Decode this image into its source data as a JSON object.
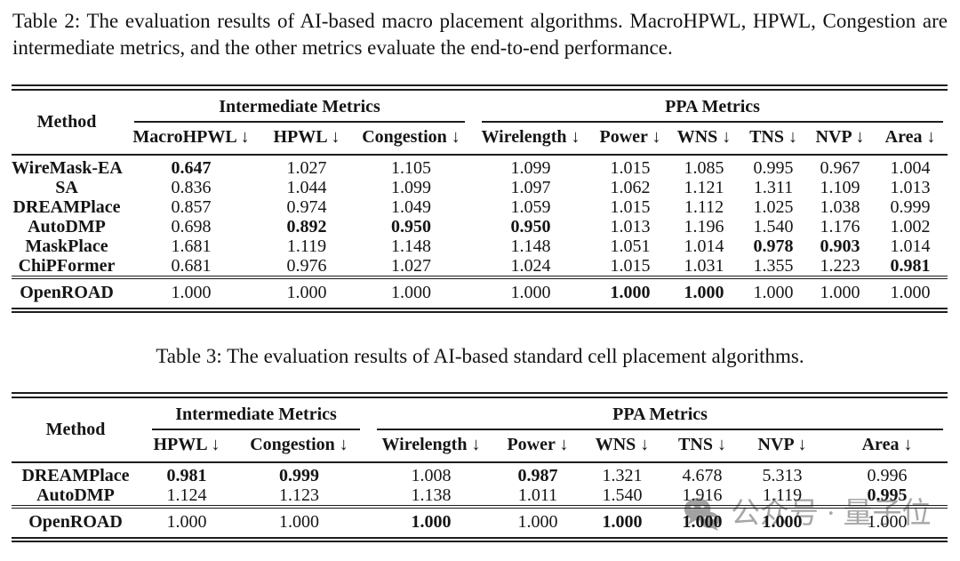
{
  "page": {
    "background": "#ffffff",
    "text_color": "#151515",
    "rule_color": "#1d1d1d",
    "watermark_color": "#a7a7a7"
  },
  "table2": {
    "caption": "Table 2: The evaluation results of AI-based macro placement algorithms. MacroHPWL, HPWL, Congestion are intermediate metrics, and the other metrics evaluate the end-to-end performance.",
    "method_header": "Method",
    "groups": [
      {
        "label": "Intermediate Metrics"
      },
      {
        "label": "PPA Metrics"
      }
    ],
    "columns": [
      "MacroHPWL ↓",
      "HPWL ↓",
      "Congestion ↓",
      "Wirelength ↓",
      "Power ↓",
      "WNS ↓",
      "TNS ↓",
      "NVP ↓",
      "Area ↓"
    ],
    "rows": [
      {
        "method": "WireMask-EA",
        "cells": [
          {
            "v": "0.647",
            "b": true
          },
          {
            "v": "1.027"
          },
          {
            "v": "1.105"
          },
          {
            "v": "1.099"
          },
          {
            "v": "1.015"
          },
          {
            "v": "1.085"
          },
          {
            "v": "0.995"
          },
          {
            "v": "0.967"
          },
          {
            "v": "1.004"
          }
        ]
      },
      {
        "method": "SA",
        "cells": [
          {
            "v": "0.836"
          },
          {
            "v": "1.044"
          },
          {
            "v": "1.099"
          },
          {
            "v": "1.097"
          },
          {
            "v": "1.062"
          },
          {
            "v": "1.121"
          },
          {
            "v": "1.311"
          },
          {
            "v": "1.109"
          },
          {
            "v": "1.013"
          }
        ]
      },
      {
        "method": "DREAMPlace",
        "cells": [
          {
            "v": "0.857"
          },
          {
            "v": "0.974"
          },
          {
            "v": "1.049"
          },
          {
            "v": "1.059"
          },
          {
            "v": "1.015"
          },
          {
            "v": "1.112"
          },
          {
            "v": "1.025"
          },
          {
            "v": "1.038"
          },
          {
            "v": "0.999"
          }
        ]
      },
      {
        "method": "AutoDMP",
        "cells": [
          {
            "v": "0.698"
          },
          {
            "v": "0.892",
            "b": true
          },
          {
            "v": "0.950",
            "b": true
          },
          {
            "v": "0.950",
            "b": true
          },
          {
            "v": "1.013"
          },
          {
            "v": "1.196"
          },
          {
            "v": "1.540"
          },
          {
            "v": "1.176"
          },
          {
            "v": "1.002"
          }
        ]
      },
      {
        "method": "MaskPlace",
        "cells": [
          {
            "v": "1.681"
          },
          {
            "v": "1.119"
          },
          {
            "v": "1.148"
          },
          {
            "v": "1.148"
          },
          {
            "v": "1.051"
          },
          {
            "v": "1.014"
          },
          {
            "v": "0.978",
            "b": true
          },
          {
            "v": "0.903",
            "b": true
          },
          {
            "v": "1.014"
          }
        ]
      },
      {
        "method": "ChiPFormer",
        "cells": [
          {
            "v": "0.681"
          },
          {
            "v": "0.976"
          },
          {
            "v": "1.027"
          },
          {
            "v": "1.024"
          },
          {
            "v": "1.015"
          },
          {
            "v": "1.031"
          },
          {
            "v": "1.355"
          },
          {
            "v": "1.223"
          },
          {
            "v": "0.981",
            "b": true
          }
        ]
      }
    ],
    "baseline": [
      {
        "method": "OpenROAD",
        "cells": [
          {
            "v": "1.000"
          },
          {
            "v": "1.000"
          },
          {
            "v": "1.000"
          },
          {
            "v": "1.000"
          },
          {
            "v": "1.000",
            "b": true
          },
          {
            "v": "1.000",
            "b": true
          },
          {
            "v": "1.000"
          },
          {
            "v": "1.000"
          },
          {
            "v": "1.000"
          }
        ]
      }
    ]
  },
  "table3": {
    "caption": "Table 3: The evaluation results of AI-based standard cell placement algorithms.",
    "method_header": "Method",
    "groups": [
      {
        "label": "Intermediate Metrics"
      },
      {
        "label": "PPA Metrics"
      }
    ],
    "columns": [
      "HPWL ↓",
      "Congestion ↓",
      "Wirelength ↓",
      "Power ↓",
      "WNS ↓",
      "TNS ↓",
      "NVP ↓",
      "Area ↓"
    ],
    "rows": [
      {
        "method": "DREAMPlace",
        "cells": [
          {
            "v": "0.981",
            "b": true
          },
          {
            "v": "0.999",
            "b": true
          },
          {
            "v": "1.008"
          },
          {
            "v": "0.987",
            "b": true
          },
          {
            "v": "1.321"
          },
          {
            "v": "4.678"
          },
          {
            "v": "5.313"
          },
          {
            "v": "0.996"
          }
        ]
      },
      {
        "method": "AutoDMP",
        "cells": [
          {
            "v": "1.124"
          },
          {
            "v": "1.123"
          },
          {
            "v": "1.138"
          },
          {
            "v": "1.011"
          },
          {
            "v": "1.540"
          },
          {
            "v": "1.916"
          },
          {
            "v": "1.119"
          },
          {
            "v": "0.995",
            "b": true
          }
        ]
      }
    ],
    "baseline": [
      {
        "method": "OpenROAD",
        "cells": [
          {
            "v": "1.000"
          },
          {
            "v": "1.000"
          },
          {
            "v": "1.000",
            "b": true
          },
          {
            "v": "1.000"
          },
          {
            "v": "1.000",
            "b": true
          },
          {
            "v": "1.000",
            "b": true
          },
          {
            "v": "1.000",
            "b": true
          },
          {
            "v": "1.000"
          }
        ]
      }
    ]
  },
  "watermark": {
    "icon": "wechat-icon",
    "text": "公众号 · 量子位"
  }
}
